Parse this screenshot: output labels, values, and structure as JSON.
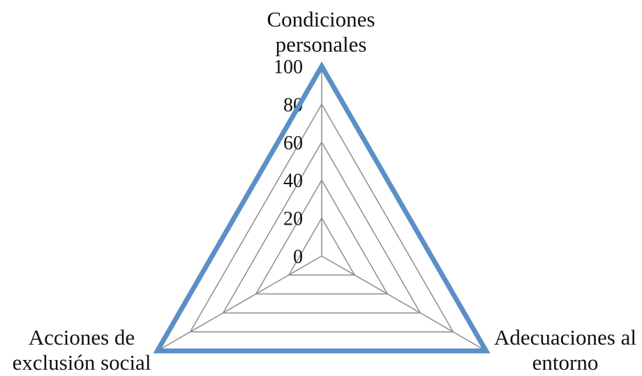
{
  "chart_data": {
    "type": "radar",
    "title": "",
    "axes": [
      {
        "label_lines": [
          "Condiciones",
          "personales"
        ]
      },
      {
        "label_lines": [
          "Adecuaciones al",
          "entorno"
        ]
      },
      {
        "label_lines": [
          "Acciones de",
          "exclusión social"
        ]
      }
    ],
    "r_ticks": [
      "0",
      "20",
      "40",
      "60",
      "80",
      "100"
    ],
    "r_range": [
      0,
      100
    ],
    "grid": true,
    "series": [
      {
        "values": [
          100,
          100,
          100
        ],
        "color": "#5B8FC7"
      }
    ],
    "grid_color": "#8c8c8c"
  }
}
